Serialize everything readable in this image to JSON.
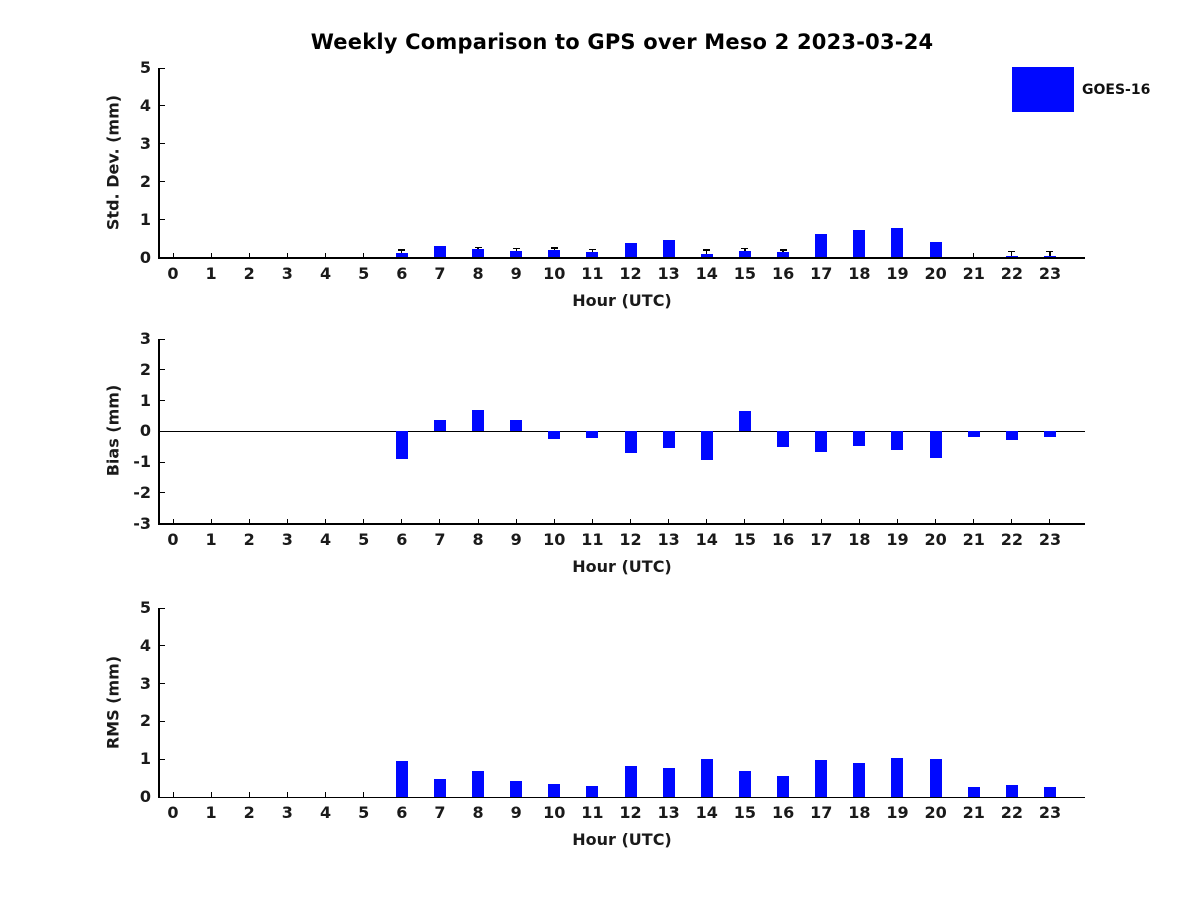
{
  "title": "Weekly Comparison to GPS over Meso 2 2023-03-24",
  "legend": {
    "label": "GOES-16",
    "color": "#0008ff"
  },
  "xlabel": "Hour (UTC)",
  "colors": {
    "bar": "#0008ff",
    "axis": "#000000",
    "text": "#1a1a1a",
    "error": "#000000"
  },
  "chart_data": [
    {
      "type": "bar",
      "name": "std-dev-panel",
      "ylabel": "Std. Dev. (mm)",
      "ylim": [
        0,
        5
      ],
      "yticks": [
        0,
        1,
        2,
        3,
        4,
        5
      ],
      "zero_line": false,
      "categories": [
        0,
        1,
        2,
        3,
        4,
        5,
        6,
        7,
        8,
        9,
        10,
        11,
        12,
        13,
        14,
        15,
        16,
        17,
        18,
        19,
        20,
        21,
        22,
        23
      ],
      "values": [
        0,
        0,
        0,
        0,
        0,
        0,
        0.13,
        0.3,
        0.22,
        0.18,
        0.2,
        0.15,
        0.38,
        0.45,
        0.1,
        0.18,
        0.15,
        0.63,
        0.73,
        0.78,
        0.4,
        0,
        0.05,
        0.05
      ],
      "error_tops": [
        null,
        null,
        null,
        null,
        null,
        null,
        0.2,
        null,
        0.27,
        0.24,
        0.25,
        0.21,
        null,
        null,
        0.2,
        0.24,
        0.2,
        null,
        null,
        null,
        null,
        null,
        0.16,
        0.16
      ]
    },
    {
      "type": "bar",
      "name": "bias-panel",
      "ylabel": "Bias (mm)",
      "ylim": [
        -3,
        3
      ],
      "yticks": [
        3,
        2,
        1,
        0,
        -1,
        -2,
        -3
      ],
      "zero_line": true,
      "categories": [
        0,
        1,
        2,
        3,
        4,
        5,
        6,
        7,
        8,
        9,
        10,
        11,
        12,
        13,
        14,
        15,
        16,
        17,
        18,
        19,
        20,
        21,
        22,
        23
      ],
      "values": [
        0,
        0,
        0,
        0,
        0,
        0,
        -0.9,
        0.37,
        0.68,
        0.37,
        -0.25,
        -0.22,
        -0.72,
        -0.56,
        -0.95,
        0.65,
        -0.5,
        -0.67,
        -0.49,
        -0.6,
        -0.87,
        -0.2,
        -0.3,
        -0.19
      ],
      "error_tops": [
        null,
        null,
        null,
        null,
        null,
        null,
        null,
        null,
        null,
        null,
        null,
        null,
        null,
        null,
        null,
        null,
        null,
        null,
        null,
        null,
        null,
        null,
        null,
        null
      ]
    },
    {
      "type": "bar",
      "name": "rms-panel",
      "ylabel": "RMS (mm)",
      "ylim": [
        0,
        5
      ],
      "yticks": [
        0,
        1,
        2,
        3,
        4,
        5
      ],
      "zero_line": false,
      "categories": [
        0,
        1,
        2,
        3,
        4,
        5,
        6,
        7,
        8,
        9,
        10,
        11,
        12,
        13,
        14,
        15,
        16,
        17,
        18,
        19,
        20,
        21,
        22,
        23
      ],
      "values": [
        0,
        0,
        0,
        0,
        0,
        0,
        0.94,
        0.48,
        0.69,
        0.42,
        0.34,
        0.29,
        0.82,
        0.76,
        1.0,
        0.69,
        0.56,
        0.98,
        0.91,
        1.03,
        1.0,
        0.27,
        0.32,
        0.26
      ],
      "error_tops": [
        null,
        null,
        null,
        null,
        null,
        null,
        null,
        null,
        null,
        null,
        null,
        null,
        null,
        null,
        null,
        null,
        null,
        null,
        null,
        null,
        null,
        null,
        null,
        null
      ]
    }
  ]
}
